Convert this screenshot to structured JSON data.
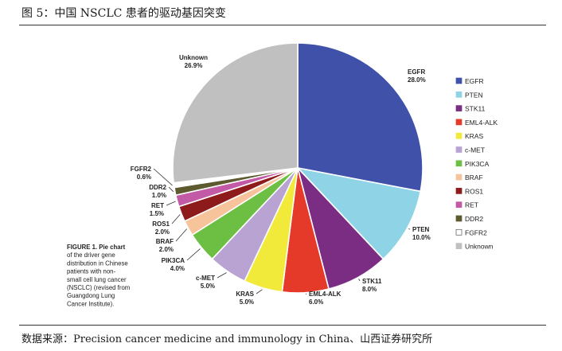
{
  "figure_title": "图 5：中国 NSCLC 患者的驱动基因突变",
  "source_note": "数据来源：Precision cancer medicine and immunology in China、山西证券研究所",
  "caption_lines": [
    "FIGURE 1. Pie chart",
    "of the driver gene",
    "distribution in Chinese",
    "patients with non-",
    "small cell lung cancer",
    "(NSCLC) (revised from",
    "Guangdong Lung",
    "Cancer Institute)."
  ],
  "chart_data": {
    "type": "pie",
    "title": "",
    "legend_position": "right",
    "series": [
      {
        "name": "EGFR",
        "value": 28.0,
        "label": "28.0%",
        "color": "#3f51a8"
      },
      {
        "name": "PTEN",
        "value": 10.0,
        "label": "10.0%",
        "color": "#8fd3e6"
      },
      {
        "name": "STK11",
        "value": 8.0,
        "label": "8.0%",
        "color": "#7b2d83"
      },
      {
        "name": "EML4-ALK",
        "value": 6.0,
        "label": "6.0%",
        "color": "#e53a2a"
      },
      {
        "name": "KRAS",
        "value": 5.0,
        "label": "5.0%",
        "color": "#f2ea3a"
      },
      {
        "name": "c-MET",
        "value": 5.0,
        "label": "5.0%",
        "color": "#b9a3d3"
      },
      {
        "name": "PIK3CA",
        "value": 4.0,
        "label": "4.0%",
        "color": "#6dbf44"
      },
      {
        "name": "BRAF",
        "value": 2.0,
        "label": "2.0%",
        "color": "#f6c39b"
      },
      {
        "name": "ROS1",
        "value": 2.0,
        "label": "2.0%",
        "color": "#8e1b1b"
      },
      {
        "name": "RET",
        "value": 1.5,
        "label": "1.5%",
        "color": "#c25aa6"
      },
      {
        "name": "DDR2",
        "value": 1.0,
        "label": "1.0%",
        "color": "#5c5a2e"
      },
      {
        "name": "FGFR2",
        "value": 0.6,
        "label": "0.6%",
        "color": "#ffffff"
      },
      {
        "name": "Unknown",
        "value": 26.9,
        "label": "26.9%",
        "color": "#c0c0c0"
      }
    ]
  }
}
